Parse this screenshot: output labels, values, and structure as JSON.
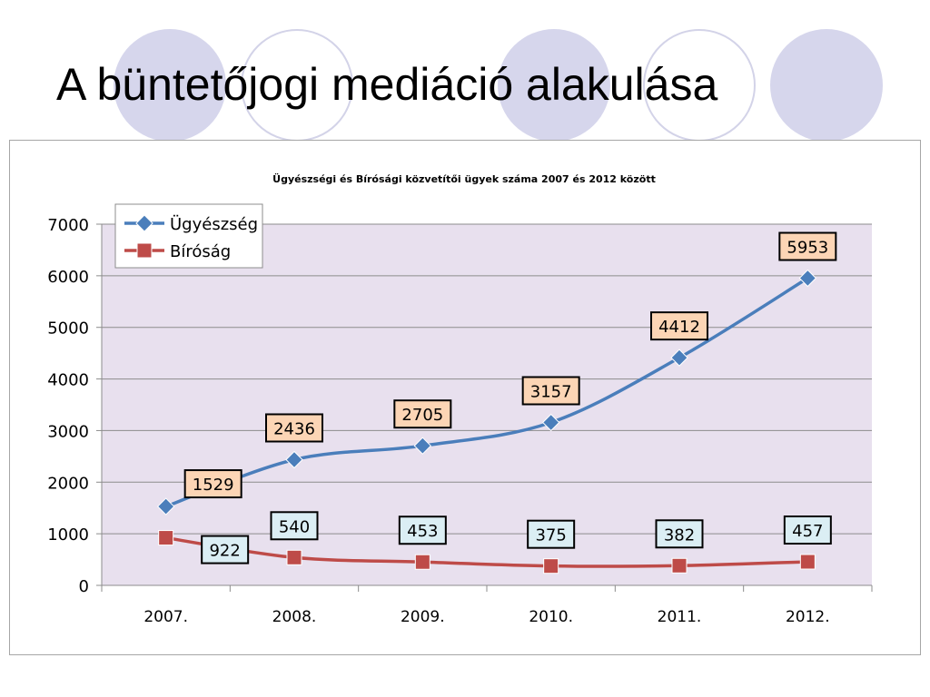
{
  "slide": {
    "title": "A büntetőjogi mediáció alakulása"
  },
  "colors": {
    "plot_background": "#e8e0ee",
    "series_1": "#4a7ebb",
    "series_2": "#be4b48",
    "label_box_1": "#fcd5b5",
    "label_box_2": "#dbeef4",
    "decor_circle": "#d6d6ec"
  },
  "chart_data": {
    "type": "line",
    "title": "Ügyészségi és Bírósági közvetítői ügyek száma 2007 és 2012 között",
    "xlabel": "",
    "ylabel": "",
    "categories": [
      "2007.",
      "2008.",
      "2009.",
      "2010.",
      "2011.",
      "2012."
    ],
    "ylim": [
      0,
      7000
    ],
    "yticks": [
      0,
      1000,
      2000,
      3000,
      4000,
      5000,
      6000,
      7000
    ],
    "grid": true,
    "legend": "top-left",
    "series": [
      {
        "name": "Ügyészség",
        "values": [
          1529,
          2436,
          2705,
          3157,
          4412,
          5953
        ],
        "marker": "diamond",
        "color": "#4a7ebb"
      },
      {
        "name": "Bíróság",
        "values": [
          922,
          540,
          453,
          375,
          382,
          457
        ],
        "marker": "square",
        "color": "#be4b48"
      }
    ]
  }
}
